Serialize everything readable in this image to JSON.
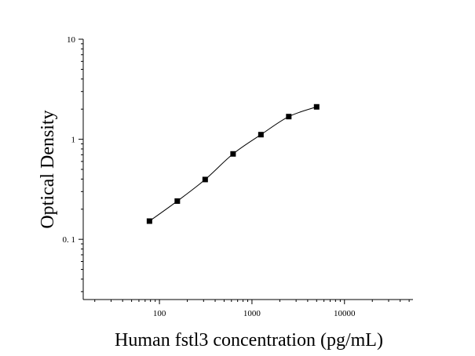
{
  "chart_data": {
    "type": "scatter",
    "title": "",
    "xlabel": "Human fstl3 concentration (pg/mL)",
    "ylabel": "Optical Density",
    "xscale": "log",
    "yscale": "log",
    "xlim": [
      15,
      55000
    ],
    "ylim": [
      0.025,
      10
    ],
    "x_ticks": [
      {
        "value": 100,
        "label": "100"
      },
      {
        "value": 1000,
        "label": "1000"
      },
      {
        "value": 10000,
        "label": "10000"
      }
    ],
    "y_ticks": [
      {
        "value": 0.1,
        "label": "0. 1"
      },
      {
        "value": 1,
        "label": "1"
      },
      {
        "value": 10,
        "label": "10"
      }
    ],
    "grid": false,
    "legend": "none",
    "marker": "square",
    "fit_curve": true,
    "color": "#000000",
    "x": [
      78,
      156,
      312,
      625,
      1250,
      2500,
      5000
    ],
    "y": [
      0.152,
      0.241,
      0.396,
      0.714,
      1.112,
      1.685,
      2.108
    ]
  }
}
